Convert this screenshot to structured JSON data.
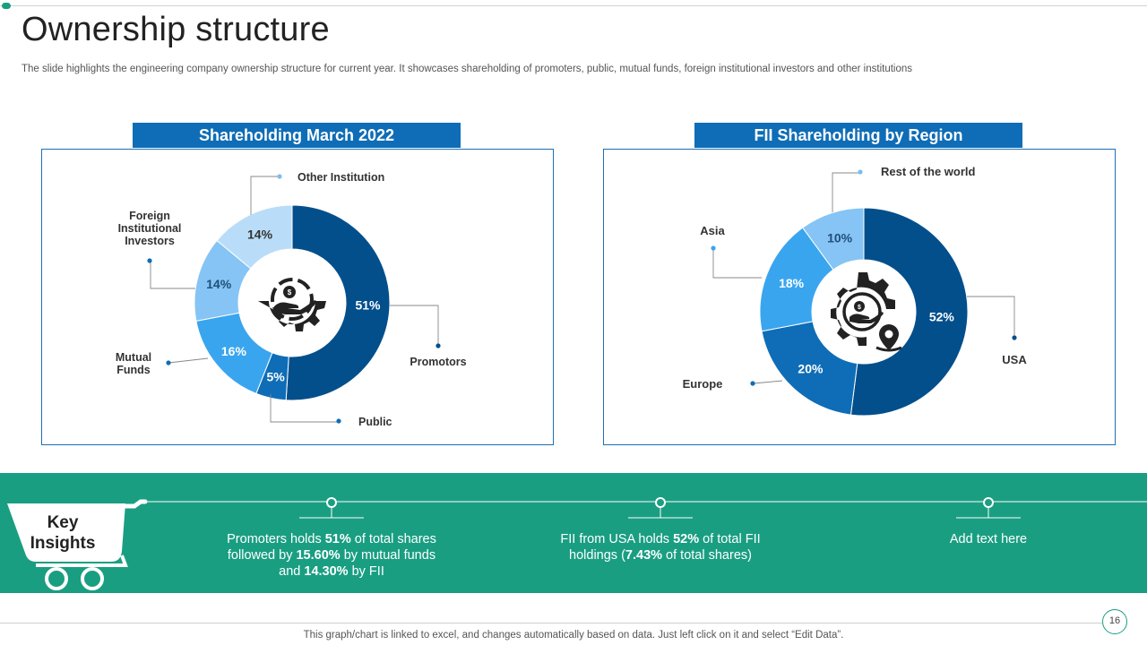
{
  "page": {
    "title": "Ownership structure",
    "subtitle": "The slide highlights the engineering company ownership structure for current year.  It showcases shareholding of promoters, public, mutual funds, foreign institutional investors and other institutions",
    "footer": "This graph/chart is linked to excel,  and changes automatically based on data. Just left click on it and select “Edit Data”.",
    "page_number": "16"
  },
  "colors": {
    "dark_blue": "#034f8c",
    "mid_blue": "#0e6db6",
    "bright_blue": "#3aa5ef",
    "light_blue": "#85c4f5",
    "pale_blue": "#b9ddf8",
    "green": "#1a9e82"
  },
  "chart_data": [
    {
      "type": "pie",
      "title": "Shareholding March 2022",
      "categories": [
        "Promotors",
        "Public",
        "Mutual Funds",
        "Foreign Institutional Investors",
        "Other Institution"
      ],
      "legend_labels": [
        "Promotors",
        "Public",
        "Mutual\nFunds",
        "Foreign\nInstitutional\nInvestors",
        "Other Institution"
      ],
      "values": [
        51,
        5,
        16,
        14,
        14
      ],
      "value_labels": [
        "51%",
        "5%",
        "16%",
        "14%",
        "14%"
      ],
      "colors": [
        "#034f8c",
        "#0e6db6",
        "#3aa5ef",
        "#85c4f5",
        "#b9ddf8"
      ]
    },
    {
      "type": "pie",
      "title": "FII Shareholding by Region",
      "categories": [
        "USA",
        "Europe",
        "Asia",
        "Rest of the world"
      ],
      "legend_labels": [
        "USA",
        "Europe",
        "Asia",
        "Rest of the world"
      ],
      "values": [
        52,
        20,
        18,
        10
      ],
      "value_labels": [
        "52%",
        "20%",
        "18%",
        "10%"
      ],
      "colors": [
        "#034f8c",
        "#0e6db6",
        "#3aa5ef",
        "#85c4f5"
      ]
    }
  ],
  "insights": {
    "label": "Key\nInsights",
    "items": [
      {
        "parts": [
          {
            "text": "Promoters holds ",
            "bold": false
          },
          {
            "text": "51%",
            "bold": true
          },
          {
            "text": " of total shares followed by ",
            "bold": false
          },
          {
            "text": "15.60%",
            "bold": true
          },
          {
            "text": " by mutual funds and ",
            "bold": false
          },
          {
            "text": "14.30%",
            "bold": true
          },
          {
            "text": " by FII",
            "bold": false
          }
        ]
      },
      {
        "parts": [
          {
            "text": "FII from USA holds ",
            "bold": false
          },
          {
            "text": "52%",
            "bold": true
          },
          {
            "text": " of total FII holdings (",
            "bold": false
          },
          {
            "text": "7.43%",
            "bold": true
          },
          {
            "text": " of total shares)",
            "bold": false
          }
        ]
      },
      {
        "parts": [
          {
            "text": "Add text here",
            "bold": false
          }
        ]
      }
    ]
  }
}
